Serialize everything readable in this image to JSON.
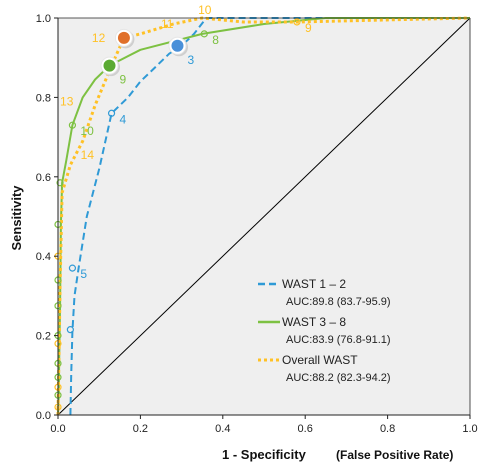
{
  "chart_data": {
    "type": "line",
    "xlabel": "1 - Specificity",
    "xlabel_note": "(False Positive Rate)",
    "ylabel": "Sensitivity",
    "xlim": [
      0,
      1
    ],
    "ylim": [
      0,
      1
    ],
    "xticks": [
      "0.0",
      "0.2",
      "0.4",
      "0.6",
      "0.8",
      "1.0"
    ],
    "yticks": [
      "0.0",
      "0.2",
      "0.4",
      "0.6",
      "0.8",
      "1.0"
    ],
    "background": "#efefef",
    "grid": false,
    "legend_position": "lower-right",
    "reference_line": {
      "x": [
        0,
        1
      ],
      "y": [
        0,
        1
      ],
      "color": "#000000"
    },
    "series": [
      {
        "name": "WAST 1 – 2",
        "auc": "AUC:89.8 (83.7-95.9)",
        "color": "#2f9ad6",
        "dash": "dashed",
        "x": [
          0.03,
          0.032,
          0.035,
          0.04,
          0.05,
          0.07,
          0.1,
          0.13,
          0.17,
          0.2,
          0.23,
          0.27,
          0.3,
          0.33,
          0.36,
          0.45,
          0.6,
          1.0
        ],
        "y": [
          0.0,
          0.1,
          0.21,
          0.3,
          0.37,
          0.5,
          0.62,
          0.76,
          0.8,
          0.84,
          0.87,
          0.91,
          0.93,
          0.96,
          1.0,
          1.0,
          1.0,
          1.0
        ],
        "markers": [
          {
            "x": 0.03,
            "y": 0.215,
            "label": "",
            "highlight": false
          },
          {
            "x": 0.035,
            "y": 0.37,
            "label": "5",
            "highlight": false
          },
          {
            "x": 0.13,
            "y": 0.76,
            "label": "4",
            "highlight": false
          },
          {
            "x": 0.29,
            "y": 0.93,
            "label": "3",
            "highlight": true,
            "fill": "#4a90d9"
          }
        ]
      },
      {
        "name": "WAST 3 – 8",
        "auc": "AUC:83.9 (76.8-91.1)",
        "color": "#7dc142",
        "dash": "solid",
        "x": [
          0.0,
          0.002,
          0.003,
          0.005,
          0.007,
          0.01,
          0.02,
          0.035,
          0.06,
          0.09,
          0.125,
          0.2,
          0.35,
          0.5,
          0.65,
          1.0
        ],
        "y": [
          0.0,
          0.06,
          0.14,
          0.28,
          0.48,
          0.585,
          0.64,
          0.73,
          0.8,
          0.845,
          0.88,
          0.92,
          0.96,
          0.985,
          1.0,
          1.0
        ],
        "markers": [
          {
            "x": 0.0,
            "y": 0.05,
            "label": "",
            "highlight": false
          },
          {
            "x": 0.0,
            "y": 0.095,
            "label": "",
            "highlight": false
          },
          {
            "x": 0.0,
            "y": 0.13,
            "label": "",
            "highlight": false
          },
          {
            "x": 0.0,
            "y": 0.2,
            "label": "",
            "highlight": false
          },
          {
            "x": 0.0,
            "y": 0.275,
            "label": "",
            "highlight": false
          },
          {
            "x": 0.0,
            "y": 0.34,
            "label": "",
            "highlight": false
          },
          {
            "x": 0.0,
            "y": 0.48,
            "label": "",
            "highlight": false
          },
          {
            "x": 0.005,
            "y": 0.585,
            "label": "",
            "highlight": false
          },
          {
            "x": 0.035,
            "y": 0.73,
            "label": "10",
            "highlight": false
          },
          {
            "x": 0.125,
            "y": 0.88,
            "label": "9",
            "highlight": true,
            "fill": "#5aaa32"
          },
          {
            "x": 0.355,
            "y": 0.96,
            "label": "8",
            "highlight": false
          }
        ]
      },
      {
        "name": "Overall WAST",
        "auc": "AUC:88.2 (82.3-94.2)",
        "color": "#ffc125",
        "dash": "dotted",
        "x": [
          0.0,
          0.001,
          0.003,
          0.005,
          0.01,
          0.03,
          0.06,
          0.09,
          0.13,
          0.16,
          0.2,
          0.28,
          0.35,
          0.45,
          0.58,
          1.0
        ],
        "y": [
          0.0,
          0.07,
          0.18,
          0.33,
          0.56,
          0.63,
          0.69,
          0.78,
          0.88,
          0.95,
          0.96,
          0.985,
          1.0,
          0.99,
          0.99,
          1.0
        ],
        "markers": [
          {
            "x": 0.0,
            "y": 0.02,
            "label": "",
            "highlight": false
          },
          {
            "x": 0.0,
            "y": 0.07,
            "label": "",
            "highlight": false
          },
          {
            "x": 0.0,
            "y": 0.18,
            "label": "",
            "highlight": false
          },
          {
            "x": 0.0,
            "y": 0.4,
            "label": "",
            "highlight": false
          },
          {
            "x": 0.16,
            "y": 0.95,
            "label": "12",
            "highlight": true,
            "fill": "#e0702b"
          },
          {
            "x": 0.58,
            "y": 0.99,
            "label": "9",
            "highlight": false
          }
        ]
      }
    ],
    "free_labels": [
      {
        "text": "10",
        "x": 0.34,
        "y": 1.01,
        "color": "#ffc125"
      },
      {
        "text": "11",
        "x": 0.25,
        "y": 0.975,
        "color": "#ffc125"
      },
      {
        "text": "13",
        "x": 0.005,
        "y": 0.78,
        "color": "#ffc125"
      },
      {
        "text": "14",
        "x": 0.055,
        "y": 0.645,
        "color": "#ffc125"
      }
    ]
  }
}
